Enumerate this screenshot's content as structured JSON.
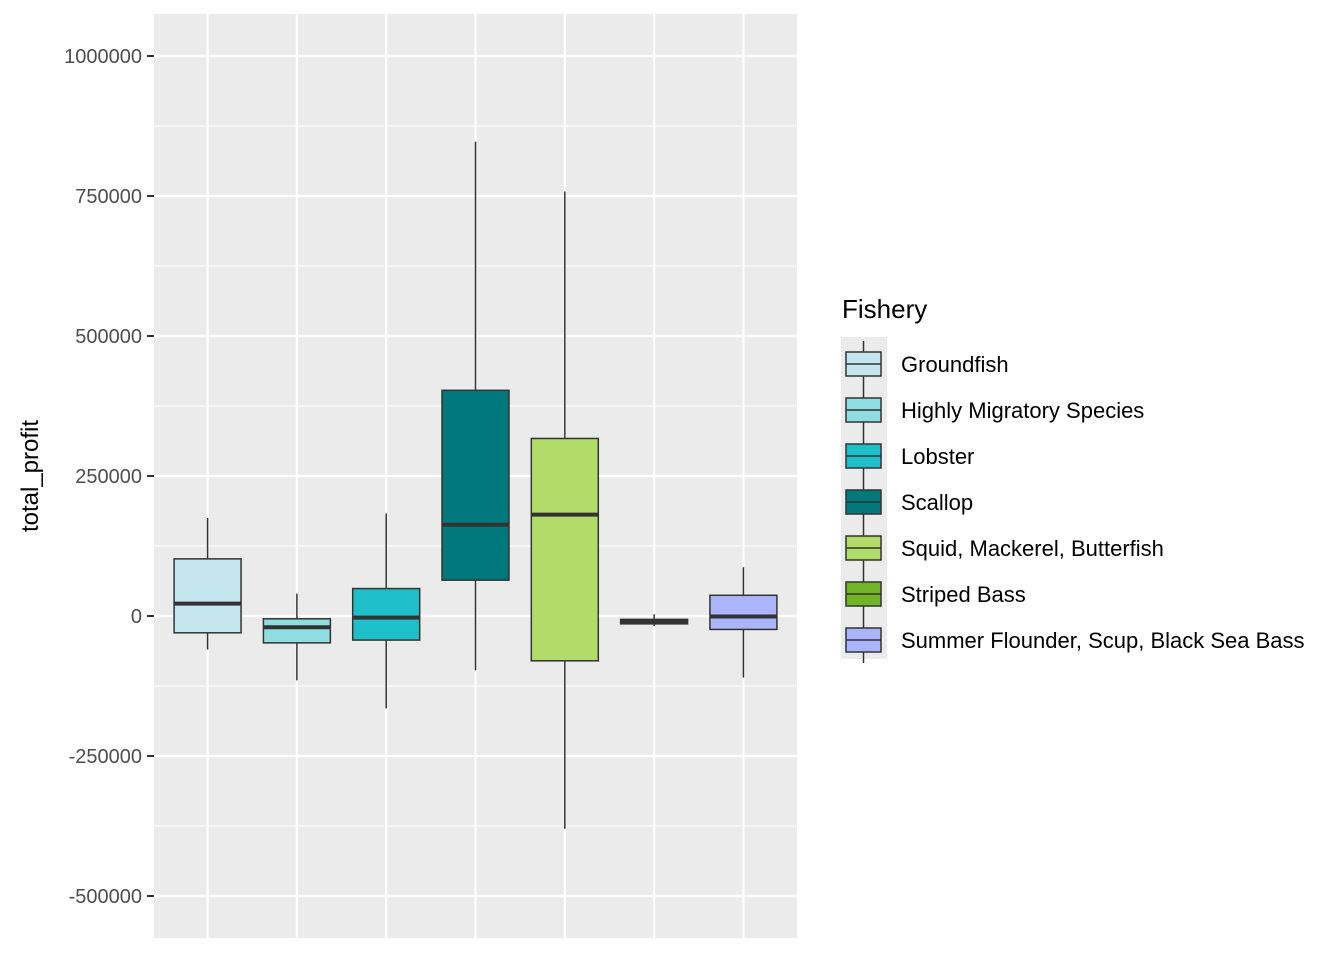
{
  "chart_data": {
    "type": "boxplot",
    "title": "",
    "xlabel": "",
    "ylabel": "total_profit",
    "ylim": [
      -575000,
      1075000
    ],
    "yticks": [
      1000000,
      750000,
      500000,
      250000,
      0,
      -250000,
      -500000
    ],
    "ytick_labels": [
      "1000000",
      "750000",
      "500000",
      "250000",
      "0",
      "-250000",
      "-500000"
    ],
    "grid": true,
    "legend": {
      "title": "Fishery",
      "position": "right"
    },
    "series": [
      {
        "name": "Groundfish",
        "color": "#C6E6EF",
        "whisker_low": -60000,
        "q1": -30000,
        "median": 22000,
        "q3": 102000,
        "whisker_high": 175000
      },
      {
        "name": "Highly Migratory Species",
        "color": "#8EDDE0",
        "whisker_low": -115000,
        "q1": -48000,
        "median": -20000,
        "q3": -5000,
        "whisker_high": 40000
      },
      {
        "name": "Lobster",
        "color": "#1DBFC9",
        "whisker_low": -165000,
        "q1": -43000,
        "median": -3000,
        "q3": 49000,
        "whisker_high": 183000
      },
      {
        "name": "Scallop",
        "color": "#00787C",
        "whisker_low": -97000,
        "q1": 64000,
        "median": 163000,
        "q3": 403000,
        "whisker_high": 847000
      },
      {
        "name": "Squid, Mackerel, Butterfish",
        "color": "#B1DC6A",
        "whisker_low": -380000,
        "q1": -80000,
        "median": 181000,
        "q3": 317000,
        "whisker_high": 758000
      },
      {
        "name": "Striped Bass",
        "color": "#71B525",
        "whisker_low": -18000,
        "q1": -14000,
        "median": -10000,
        "q3": -6000,
        "whisker_high": 3000
      },
      {
        "name": "Summer Flounder, Scup, Black Sea Bass",
        "color": "#AAB5FB",
        "whisker_low": -110000,
        "q1": -24000,
        "median": -1000,
        "q3": 37000,
        "whisker_high": 87000
      }
    ]
  }
}
